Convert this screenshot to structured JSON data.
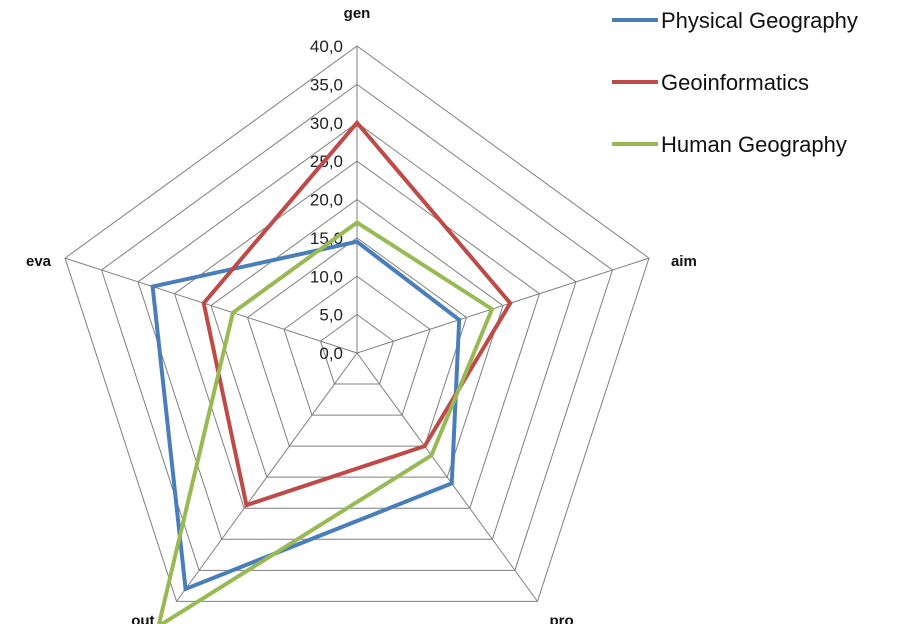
{
  "chart_data": {
    "type": "radar",
    "title": "",
    "axes": [
      "gen",
      "aim",
      "pro",
      "out",
      "eva"
    ],
    "rlim": [
      0,
      40
    ],
    "tick_values": [
      0,
      5,
      10,
      15,
      20,
      25,
      30,
      35,
      40
    ],
    "tick_labels": [
      "0,0",
      "5,0",
      "10,0",
      "15,0",
      "20,0",
      "25,0",
      "30,0",
      "35,0",
      "40,0"
    ],
    "grid": true,
    "legend_position": "top-right",
    "series": [
      {
        "name": "Physical Geography",
        "color": "#4a7ebb",
        "values": [
          14.5,
          14.0,
          21.0,
          38.0,
          28.0
        ]
      },
      {
        "name": "Geoinformatics",
        "color": "#be4b48",
        "values": [
          30.0,
          21.0,
          15.0,
          24.5,
          21.0
        ]
      },
      {
        "name": "Human Geography",
        "color": "#98b954",
        "values": [
          17.0,
          18.5,
          16.5,
          44.0,
          17.0
        ]
      }
    ]
  }
}
